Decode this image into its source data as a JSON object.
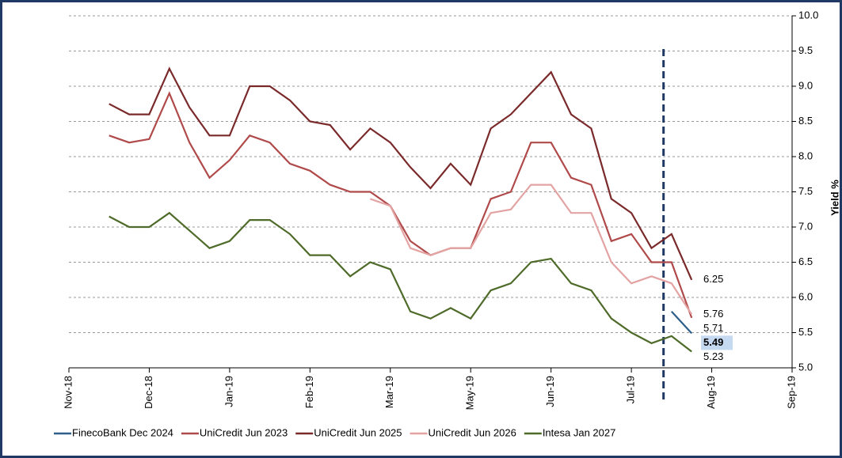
{
  "chart_data": {
    "type": "line",
    "y_label": "Yield %",
    "x": [
      0.5,
      0.75,
      1.0,
      1.25,
      1.5,
      1.75,
      2.0,
      2.25,
      2.5,
      2.75,
      3.0,
      3.25,
      3.5,
      3.75,
      4.0,
      4.25,
      4.5,
      4.75,
      5.0,
      5.25,
      5.5,
      5.75,
      6.0,
      6.25,
      6.5,
      6.75,
      7.0,
      7.25,
      7.5,
      7.75
    ],
    "xlim": [
      0,
      9
    ],
    "xticks": [
      {
        "value": 0,
        "label": "Nov-18"
      },
      {
        "value": 1,
        "label": "Dec-18"
      },
      {
        "value": 2,
        "label": "Jan-19"
      },
      {
        "value": 3,
        "label": "Feb-19"
      },
      {
        "value": 4,
        "label": "Mar-19"
      },
      {
        "value": 5,
        "label": "May-19"
      },
      {
        "value": 6,
        "label": "Jun-19"
      },
      {
        "value": 7,
        "label": "Jul-19"
      },
      {
        "value": 8,
        "label": "Aug-19"
      },
      {
        "value": 9,
        "label": "Sep-19"
      }
    ],
    "ylim": [
      5,
      10
    ],
    "yticks": [
      {
        "value": 5,
        "label": "5.0"
      },
      {
        "value": 5.5,
        "label": "5.5"
      },
      {
        "value": 6,
        "label": "6.0"
      },
      {
        "value": 6.5,
        "label": "6.5"
      },
      {
        "value": 7,
        "label": "7.0"
      },
      {
        "value": 7.5,
        "label": "7.5"
      },
      {
        "value": 8,
        "label": "8.0"
      },
      {
        "value": 8.5,
        "label": "8.5"
      },
      {
        "value": 9,
        "label": "9.0"
      },
      {
        "value": 9.5,
        "label": "9.5"
      },
      {
        "value": 10,
        "label": "10.0"
      }
    ],
    "grid": true,
    "vline": 7.4,
    "legend": "bottom",
    "series": [
      {
        "name": "FinecoBank Dec 2024",
        "color": "#2e5f8a",
        "label_highlight": true,
        "values": [
          null,
          null,
          null,
          null,
          null,
          null,
          null,
          null,
          null,
          null,
          null,
          null,
          null,
          null,
          null,
          null,
          null,
          null,
          null,
          null,
          null,
          null,
          null,
          null,
          null,
          null,
          null,
          null,
          5.8,
          5.49
        ]
      },
      {
        "name": "UniCredit Jun 2023",
        "color": "#b04a4a",
        "values": [
          8.3,
          8.2,
          8.25,
          8.9,
          8.2,
          7.7,
          7.95,
          8.3,
          8.2,
          7.9,
          7.8,
          7.6,
          7.5,
          7.5,
          7.3,
          6.8,
          6.6,
          6.7,
          6.7,
          7.4,
          7.5,
          8.2,
          8.2,
          7.7,
          7.6,
          6.8,
          6.9,
          6.5,
          6.5,
          5.71
        ]
      },
      {
        "name": "UniCredit Jun 2025",
        "color": "#7a2a2a",
        "values": [
          8.75,
          8.6,
          8.6,
          9.25,
          8.7,
          8.3,
          8.3,
          9.0,
          9.0,
          8.8,
          8.5,
          8.45,
          8.1,
          8.4,
          8.2,
          7.85,
          7.55,
          7.9,
          7.6,
          8.4,
          8.6,
          8.9,
          9.2,
          8.6,
          8.4,
          7.4,
          7.2,
          6.7,
          6.9,
          6.25
        ]
      },
      {
        "name": "UniCredit Jun 2026",
        "color": "#e3a3a3",
        "values": [
          null,
          null,
          null,
          null,
          null,
          null,
          null,
          null,
          null,
          null,
          null,
          null,
          null,
          7.4,
          7.3,
          6.7,
          6.6,
          6.7,
          6.7,
          7.2,
          7.25,
          7.6,
          7.6,
          7.2,
          7.2,
          6.5,
          6.2,
          6.3,
          6.2,
          5.76
        ]
      },
      {
        "name": "Intesa Jan 2027",
        "color": "#4f6b2a",
        "values": [
          7.15,
          7.0,
          7.0,
          7.2,
          6.95,
          6.7,
          6.8,
          7.1,
          7.1,
          6.9,
          6.6,
          6.6,
          6.3,
          6.5,
          6.4,
          5.8,
          5.7,
          5.85,
          5.7,
          6.1,
          6.2,
          6.5,
          6.55,
          6.2,
          6.1,
          5.7,
          5.5,
          5.35,
          5.45,
          5.23
        ]
      }
    ]
  }
}
